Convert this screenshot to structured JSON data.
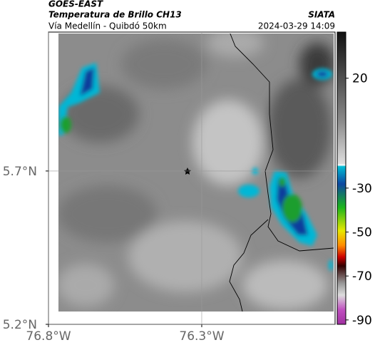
{
  "header": {
    "title": "GOES-EAST",
    "subtitle": "Temperatura de Brillo CH13",
    "source": "SIATA",
    "route": "Vía Medellín - Quibdó 50km",
    "timestamp": "2024-03-29 14:09"
  },
  "map": {
    "xlim": [
      -76.8,
      -75.865
    ],
    "ylim": [
      5.2,
      6.153
    ],
    "xticks": [
      {
        "value": -76.8,
        "label": "76.8°W"
      },
      {
        "value": -76.3,
        "label": "76.3°W"
      }
    ],
    "yticks": [
      {
        "value": 5.2,
        "label": "5.2°N"
      },
      {
        "value": 5.7,
        "label": "5.7°N"
      }
    ],
    "grid": true
  },
  "colorbar": {
    "lim": [
      -92,
      41
    ],
    "ticks": [
      20,
      -30,
      -50,
      -70,
      -90
    ]
  }
}
